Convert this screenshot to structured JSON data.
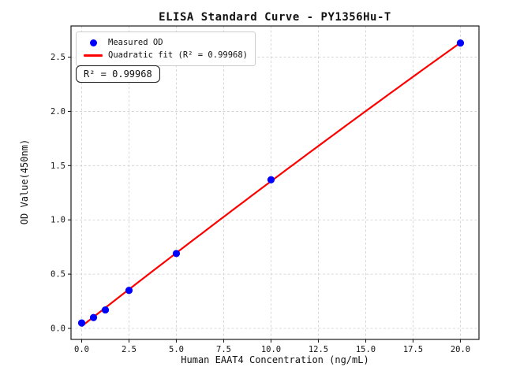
{
  "figure": {
    "title": "ELISA Standard Curve - PY1356Hu-T"
  },
  "axes": {
    "xlabel": "Human EAAT4 Concentration (ng/mL)",
    "ylabel": "OD Value(450nm)"
  },
  "legend": {
    "items": [
      {
        "label": "Measured OD",
        "marker": "dot",
        "color": "#0000ff"
      },
      {
        "label": "Quadratic fit (R² = 0.99968)",
        "marker": "line",
        "color": "#ff0000"
      }
    ]
  },
  "annotation": {
    "text": "R² = 0.99968"
  },
  "chart_data": {
    "type": "scatter",
    "title": "ELISA Standard Curve - PY1356Hu-T",
    "xlabel": "Human EAAT4 Concentration (ng/mL)",
    "ylabel": "OD Value(450nm)",
    "series": [
      {
        "name": "Measured OD",
        "x": [
          0,
          0.625,
          1.25,
          2.5,
          5,
          10,
          20
        ],
        "y": [
          0.05,
          0.1,
          0.17,
          0.35,
          0.69,
          1.37,
          2.63
        ]
      },
      {
        "name": "Quadratic fit (R² = 0.99968)",
        "fit_type": "quadratic",
        "fit_range": [
          0,
          20
        ],
        "r_squared": 0.99968
      }
    ],
    "x_ticks": [
      0.0,
      2.5,
      5.0,
      7.5,
      10.0,
      12.5,
      15.0,
      17.5,
      20.0
    ],
    "x_tick_labels": [
      "0.0",
      "2.5",
      "5.0",
      "7.5",
      "10.0",
      "12.5",
      "15.0",
      "17.5",
      "20.0"
    ],
    "y_ticks": [
      0.0,
      0.5,
      1.0,
      1.5,
      2.0,
      2.5
    ],
    "y_tick_labels": [
      "0.0",
      "0.5",
      "1.0",
      "1.5",
      "2.0",
      "2.5"
    ],
    "xlim": [
      -0.5625,
      20.98
    ],
    "ylim": [
      -0.1016,
      2.787
    ],
    "grid": true,
    "grid_style": "dashed",
    "legend_position": "upper left",
    "point_color": "#0000ff",
    "line_color": "#ff0000",
    "grid_color": "#cfcfcf",
    "spine_color": "#1a1a1a"
  }
}
